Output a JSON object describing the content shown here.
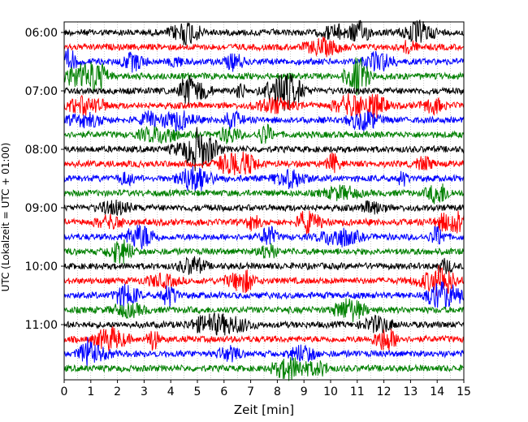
{
  "chart_data": {
    "type": "line",
    "subtype": "seismic-helicorder",
    "xlabel": "Zeit  [min]",
    "ylabel": "UTC (Lokalzeit = UTC + 01:00)",
    "xlim": [
      0,
      15
    ],
    "x_ticks": [
      0,
      1,
      2,
      3,
      4,
      5,
      6,
      7,
      8,
      9,
      10,
      11,
      12,
      13,
      14,
      15
    ],
    "y_tick_labels": [
      "06:00",
      "07:00",
      "08:00",
      "09:00",
      "10:00",
      "11:00"
    ],
    "row_minutes": 15,
    "start_time": "06:00",
    "rows": 24,
    "trace_colors": [
      "#000000",
      "#ff0000",
      "#0000ff",
      "#008000"
    ],
    "grid": "vertical dotted",
    "legend": "none"
  }
}
